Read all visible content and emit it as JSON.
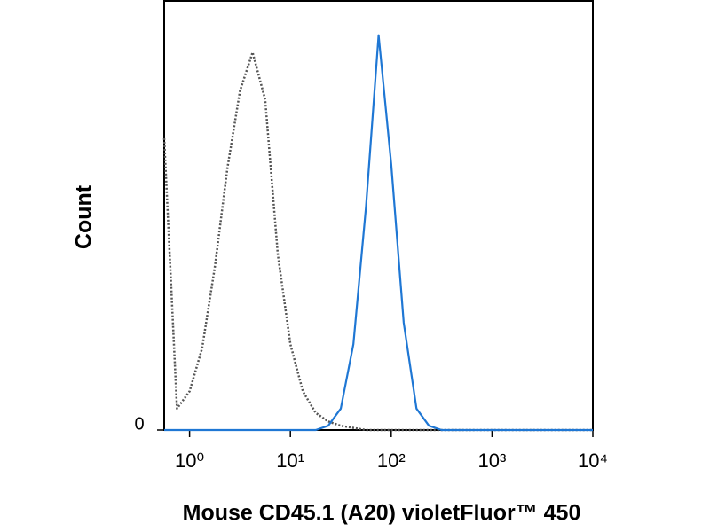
{
  "chart_data": {
    "type": "line",
    "x_label": "Mouse CD45.1 (A20) violetFluor™ 450",
    "y_label": "Count",
    "x_scale": "log",
    "xlim": [
      0.56,
      10000
    ],
    "ylim": [
      0,
      100
    ],
    "xticks": [
      {
        "value": 1,
        "label": "10⁰"
      },
      {
        "value": 10,
        "label": "10¹"
      },
      {
        "value": 100,
        "label": "10²"
      },
      {
        "value": 1000,
        "label": "10³"
      },
      {
        "value": 10000,
        "label": "10⁴"
      }
    ],
    "yticks": [
      0
    ],
    "x": [
      0.56,
      0.75,
      1,
      1.33,
      1.78,
      2.37,
      3.16,
      4.22,
      5.62,
      7.5,
      10,
      13.3,
      17.8,
      23.7,
      31.6,
      42.2,
      56.2,
      75,
      100,
      133,
      178,
      237,
      316,
      422,
      562,
      750,
      1000,
      1330,
      1780,
      2370,
      3160,
      4220,
      5620,
      7500,
      10000
    ],
    "series": [
      {
        "color": "#555555",
        "dash": true,
        "values": [
          68,
          5,
          9,
          19,
          38,
          61,
          79,
          88,
          77,
          41,
          20,
          9,
          4,
          2,
          1,
          0.5,
          0,
          0,
          0,
          0,
          0,
          0,
          0,
          0,
          0,
          0,
          0,
          0,
          0,
          0,
          0,
          0,
          0,
          0,
          0
        ]
      },
      {
        "color": "#1f77d4",
        "dash": false,
        "values": [
          0,
          0,
          0,
          0,
          0,
          0,
          0,
          0,
          0,
          0,
          0,
          0,
          0,
          1,
          5,
          20,
          52,
          92,
          62,
          25,
          5,
          1,
          0,
          0,
          0,
          0,
          0,
          0,
          0,
          0,
          0,
          0,
          0,
          0,
          0
        ]
      }
    ]
  }
}
